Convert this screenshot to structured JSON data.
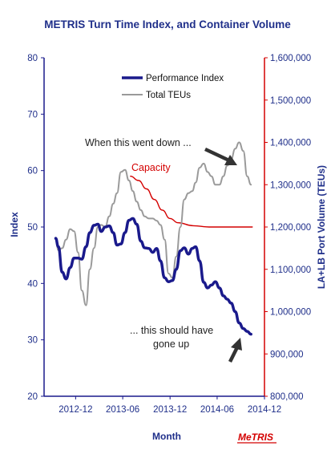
{
  "chart_data": {
    "type": "line",
    "title": "METRIS Turn Time Index, and Container Volume",
    "xlabel": "Month",
    "ylabel_left": "Index",
    "ylabel_right": "LA+LB Port Volume (TEUs)",
    "x_ticks": [
      "2012-12",
      "2013-06",
      "2013-12",
      "2014-06",
      "2014-12"
    ],
    "x_range": [
      "2012-08",
      "2014-12"
    ],
    "y_left_range": [
      20,
      80
    ],
    "y_left_ticks": [
      "20",
      "30",
      "40",
      "50",
      "60",
      "70",
      "80"
    ],
    "y_right_range": [
      800000,
      1600000
    ],
    "y_right_ticks": [
      "800,000",
      "900,000",
      "1,000,000",
      "1,100,000",
      "1,200,000",
      "1,300,000",
      "1,400,000",
      "1,500,000",
      "1,600,000"
    ],
    "grid": false,
    "legend_position": "top-left",
    "series": [
      {
        "name": "Performance Index",
        "axis": "left",
        "color": "#1a1a8c",
        "x": [
          "2012-09-15",
          "2012-09-25",
          "2012-10-10",
          "2012-10-25",
          "2012-11-10",
          "2012-11-25",
          "2012-12-10",
          "2012-12-25",
          "2013-01-10",
          "2013-01-25",
          "2013-02-10",
          "2013-02-25",
          "2013-03-10",
          "2013-03-25",
          "2013-04-10",
          "2013-04-25",
          "2013-05-10",
          "2013-05-25",
          "2013-06-10",
          "2013-06-25",
          "2013-07-10",
          "2013-07-25",
          "2013-08-10",
          "2013-08-25",
          "2013-09-10",
          "2013-09-25",
          "2013-10-10",
          "2013-10-25",
          "2013-11-10",
          "2013-11-25",
          "2013-12-10",
          "2013-12-25",
          "2014-01-10",
          "2014-01-25",
          "2014-02-10",
          "2014-02-25",
          "2014-03-10",
          "2014-03-25",
          "2014-04-10",
          "2014-04-25",
          "2014-05-10",
          "2014-05-25",
          "2014-06-10",
          "2014-06-25",
          "2014-07-10",
          "2014-07-25",
          "2014-08-10",
          "2014-08-25",
          "2014-09-10",
          "2014-09-25",
          "2014-10-10"
        ],
        "values": [
          48,
          46.5,
          42,
          40.8,
          42.8,
          44.5,
          44.5,
          44.3,
          46.5,
          49,
          50.3,
          50.5,
          49.2,
          50,
          50.2,
          49,
          46.8,
          47,
          49,
          51.2,
          51.5,
          50.5,
          47.5,
          46.3,
          46.2,
          45.5,
          46.2,
          44,
          41,
          40.3,
          40.5,
          42.5,
          45.8,
          46.3,
          45.2,
          46.2,
          46.5,
          44,
          40.2,
          39.2,
          39.7,
          40.3,
          39.2,
          37.8,
          37.2,
          36.5,
          35,
          33,
          32,
          31.5,
          31
        ]
      },
      {
        "name": "Total TEUs",
        "axis": "right",
        "color": "#9a9a9a",
        "x": [
          "2012-09-15",
          "2012-09-25",
          "2012-10-10",
          "2012-10-25",
          "2012-11-10",
          "2012-11-25",
          "2012-12-10",
          "2012-12-25",
          "2013-01-10",
          "2013-01-25",
          "2013-02-10",
          "2013-02-25",
          "2013-03-10",
          "2013-03-25",
          "2013-04-10",
          "2013-04-25",
          "2013-05-10",
          "2013-05-25",
          "2013-06-10",
          "2013-06-25",
          "2013-07-10",
          "2013-07-25",
          "2013-08-10",
          "2013-08-25",
          "2013-09-10",
          "2013-09-25",
          "2013-10-10",
          "2013-10-25",
          "2013-11-10",
          "2013-11-25",
          "2013-12-10",
          "2013-12-25",
          "2014-01-10",
          "2014-01-25",
          "2014-02-10",
          "2014-02-25",
          "2014-03-10",
          "2014-03-25",
          "2014-04-10",
          "2014-04-25",
          "2014-05-10",
          "2014-05-25",
          "2014-06-10",
          "2014-06-25",
          "2014-07-10",
          "2014-07-25",
          "2014-08-10",
          "2014-08-25",
          "2014-09-10",
          "2014-09-25",
          "2014-10-10"
        ],
        "values": [
          1175000,
          1145000,
          1150000,
          1170000,
          1195000,
          1190000,
          1140000,
          1050000,
          1015000,
          1100000,
          1150000,
          1200000,
          1205000,
          1200000,
          1225000,
          1255000,
          1280000,
          1330000,
          1335000,
          1310000,
          1285000,
          1260000,
          1240000,
          1225000,
          1220000,
          1220000,
          1215000,
          1205000,
          1170000,
          1090000,
          1080000,
          1130000,
          1200000,
          1265000,
          1280000,
          1285000,
          1305000,
          1340000,
          1350000,
          1330000,
          1320000,
          1300000,
          1300000,
          1320000,
          1345000,
          1360000,
          1385000,
          1400000,
          1380000,
          1320000,
          1300000
        ]
      },
      {
        "name": "Capacity",
        "axis": "right",
        "color": "#d40000",
        "x": [
          "2013-07-01",
          "2013-08-01",
          "2013-09-01",
          "2013-10-01",
          "2013-11-01",
          "2013-12-01",
          "2014-01-01",
          "2014-03-01",
          "2014-05-01",
          "2014-07-01",
          "2014-10-15"
        ],
        "values": [
          1320000,
          1310000,
          1290000,
          1265000,
          1240000,
          1220000,
          1210000,
          1203000,
          1200000,
          1200000,
          1200000
        ]
      }
    ],
    "legend": [
      {
        "label": "Performance Index",
        "color": "#1a1a8c"
      },
      {
        "label": "Total TEUs",
        "color": "#9a9a9a"
      }
    ],
    "annotations": [
      {
        "text": "When this went down ...",
        "color": "#222222"
      },
      {
        "text": "Capacity",
        "color": "#d40000"
      },
      {
        "text": "... this should have",
        "color": "#222222"
      },
      {
        "text": "gone up",
        "color": "#222222"
      }
    ],
    "logo": "MeTRIS"
  }
}
